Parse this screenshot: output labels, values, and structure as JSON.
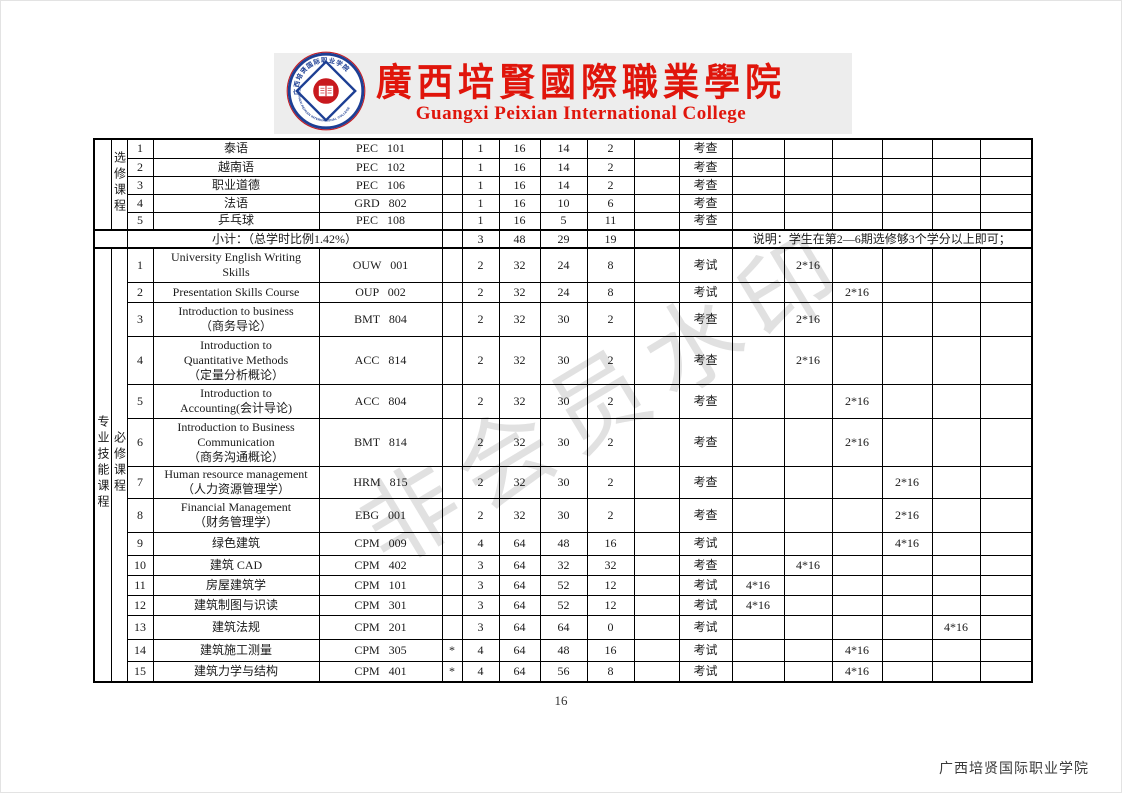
{
  "header": {
    "title_zh": "廣西培賢國際職業學院",
    "title_en": "Guangxi Peixian International College",
    "accent_color": "#e0150b",
    "logo": {
      "ring_text_top": "广西培贤国际职业学院",
      "ring_text_bottom": "GUANGXI PEIXIAN INTERNATIONAL COLLEGE",
      "ring_color": "#1d3f94",
      "center_color": "#c8191e"
    }
  },
  "watermark": "非会员水印",
  "table": {
    "elective": {
      "cat_a": "",
      "cat_b": "选修课程",
      "rows": [
        {
          "no": "1",
          "name_lines": [
            "泰语"
          ],
          "code": "PEC 101",
          "star": "",
          "credits": "1",
          "hours": "16",
          "theory": "14",
          "practice": "2",
          "blank": "",
          "assess": "考查",
          "sem": [
            "",
            "",
            "",
            "",
            "",
            ""
          ]
        },
        {
          "no": "2",
          "name_lines": [
            "越南语"
          ],
          "code": "PEC 102",
          "star": "",
          "credits": "1",
          "hours": "16",
          "theory": "14",
          "practice": "2",
          "blank": "",
          "assess": "考查",
          "sem": [
            "",
            "",
            "",
            "",
            "",
            ""
          ]
        },
        {
          "no": "3",
          "name_lines": [
            "职业道德"
          ],
          "code": "PEC 106",
          "star": "",
          "credits": "1",
          "hours": "16",
          "theory": "14",
          "practice": "2",
          "blank": "",
          "assess": "考查",
          "sem": [
            "",
            "",
            "",
            "",
            "",
            ""
          ]
        },
        {
          "no": "4",
          "name_lines": [
            "法语"
          ],
          "code": "GRD 802",
          "star": "",
          "credits": "1",
          "hours": "16",
          "theory": "10",
          "practice": "6",
          "blank": "",
          "assess": "考查",
          "sem": [
            "",
            "",
            "",
            "",
            "",
            ""
          ]
        },
        {
          "no": "5",
          "name_lines": [
            "乒乓球"
          ],
          "code": "PEC 108",
          "star": "",
          "credits": "1",
          "hours": "16",
          "theory": "5",
          "practice": "11",
          "blank": "",
          "assess": "考查",
          "sem": [
            "",
            "",
            "",
            "",
            "",
            ""
          ]
        }
      ]
    },
    "subtotal": {
      "label": "小计：（总学时比例1.42%）",
      "star": "",
      "credits": "3",
      "hours": "48",
      "theory": "29",
      "practice": "19",
      "blank": "",
      "assess": "",
      "note": "说明：学生在第2—6期选修够3个学分以上即可；"
    },
    "professional": {
      "cat_a": "专业技能课程",
      "cat_b": "必修课程",
      "rows": [
        {
          "no": "1",
          "name_lines": [
            "University English Writing",
            "Skills"
          ],
          "code": "OUW 001",
          "star": "",
          "credits": "2",
          "hours": "32",
          "theory": "24",
          "practice": "8",
          "blank": "",
          "assess": "考试",
          "sem": [
            "",
            "2*16",
            "",
            "",
            "",
            ""
          ]
        },
        {
          "no": "2",
          "name_lines": [
            "Presentation Skills Course"
          ],
          "code": "OUP 002",
          "star": "",
          "credits": "2",
          "hours": "32",
          "theory": "24",
          "practice": "8",
          "blank": "",
          "assess": "考试",
          "sem": [
            "",
            "",
            "2*16",
            "",
            "",
            ""
          ]
        },
        {
          "no": "3",
          "name_lines": [
            "Introduction to business",
            "（商务导论）"
          ],
          "code": "BMT 804",
          "star": "",
          "credits": "2",
          "hours": "32",
          "theory": "30",
          "practice": "2",
          "blank": "",
          "assess": "考查",
          "sem": [
            "",
            "2*16",
            "",
            "",
            "",
            ""
          ]
        },
        {
          "no": "4",
          "name_lines": [
            "Introduction to",
            "Quantitative Methods",
            "（定量分析概论）"
          ],
          "code": "ACC 814",
          "star": "",
          "credits": "2",
          "hours": "32",
          "theory": "30",
          "practice": "2",
          "blank": "",
          "assess": "考查",
          "sem": [
            "",
            "2*16",
            "",
            "",
            "",
            ""
          ]
        },
        {
          "no": "5",
          "name_lines": [
            "Introduction to",
            "Accounting(会计导论)"
          ],
          "code": "ACC 804",
          "star": "",
          "credits": "2",
          "hours": "32",
          "theory": "30",
          "practice": "2",
          "blank": "",
          "assess": "考查",
          "sem": [
            "",
            "",
            "2*16",
            "",
            "",
            ""
          ]
        },
        {
          "no": "6",
          "name_lines": [
            "Introduction to Business",
            "Communication",
            "（商务沟通概论）"
          ],
          "code": "BMT 814",
          "star": "",
          "credits": "2",
          "hours": "32",
          "theory": "30",
          "practice": "2",
          "blank": "",
          "assess": "考查",
          "sem": [
            "",
            "",
            "2*16",
            "",
            "",
            ""
          ]
        },
        {
          "no": "7",
          "name_lines": [
            "Human resource management",
            "（人力资源管理学）"
          ],
          "code": "HRM 815",
          "star": "",
          "credits": "2",
          "hours": "32",
          "theory": "30",
          "practice": "2",
          "blank": "",
          "assess": "考查",
          "sem": [
            "",
            "",
            "",
            "2*16",
            "",
            ""
          ]
        },
        {
          "no": "8",
          "name_lines": [
            "Financial Management",
            "（财务管理学）"
          ],
          "code": "EBG 001",
          "star": "",
          "credits": "2",
          "hours": "32",
          "theory": "30",
          "practice": "2",
          "blank": "",
          "assess": "考查",
          "sem": [
            "",
            "",
            "",
            "2*16",
            "",
            ""
          ]
        },
        {
          "no": "9",
          "name_lines": [
            "绿色建筑"
          ],
          "code": "CPM 009",
          "star": "",
          "credits": "4",
          "hours": "64",
          "theory": "48",
          "practice": "16",
          "blank": "",
          "assess": "考试",
          "sem": [
            "",
            "",
            "",
            "4*16",
            "",
            ""
          ]
        },
        {
          "no": "10",
          "name_lines": [
            "建筑 CAD"
          ],
          "code": "CPM 402",
          "star": "",
          "credits": "3",
          "hours": "64",
          "theory": "32",
          "practice": "32",
          "blank": "",
          "assess": "考查",
          "sem": [
            "",
            "4*16",
            "",
            "",
            "",
            ""
          ]
        },
        {
          "no": "11",
          "name_lines": [
            "房屋建筑学"
          ],
          "code": "CPM 101",
          "star": "",
          "credits": "3",
          "hours": "64",
          "theory": "52",
          "practice": "12",
          "blank": "",
          "assess": "考试",
          "sem": [
            "4*16",
            "",
            "",
            "",
            "",
            ""
          ]
        },
        {
          "no": "12",
          "name_lines": [
            "建筑制图与识读"
          ],
          "code": "CPM 301",
          "star": "",
          "credits": "3",
          "hours": "64",
          "theory": "52",
          "practice": "12",
          "blank": "",
          "assess": "考试",
          "sem": [
            "4*16",
            "",
            "",
            "",
            "",
            ""
          ]
        },
        {
          "no": "13",
          "name_lines": [
            "建筑法规"
          ],
          "code": "CPM 201",
          "star": "",
          "credits": "3",
          "hours": "64",
          "theory": "64",
          "practice": "0",
          "blank": "",
          "assess": "考试",
          "sem": [
            "",
            "",
            "",
            "",
            "4*16",
            ""
          ]
        },
        {
          "no": "14",
          "name_lines": [
            "建筑施工测量"
          ],
          "code": "CPM 305",
          "star": "*",
          "credits": "4",
          "hours": "64",
          "theory": "48",
          "practice": "16",
          "blank": "",
          "assess": "考试",
          "sem": [
            "",
            "",
            "4*16",
            "",
            "",
            ""
          ]
        },
        {
          "no": "15",
          "name_lines": [
            "建筑力学与结构"
          ],
          "code": "CPM 401",
          "star": "*",
          "credits": "4",
          "hours": "64",
          "theory": "56",
          "practice": "8",
          "blank": "",
          "assess": "考试",
          "sem": [
            "",
            "",
            "4*16",
            "",
            "",
            ""
          ]
        }
      ]
    }
  },
  "page_number": "16",
  "footer": "广西培贤国际职业学院"
}
